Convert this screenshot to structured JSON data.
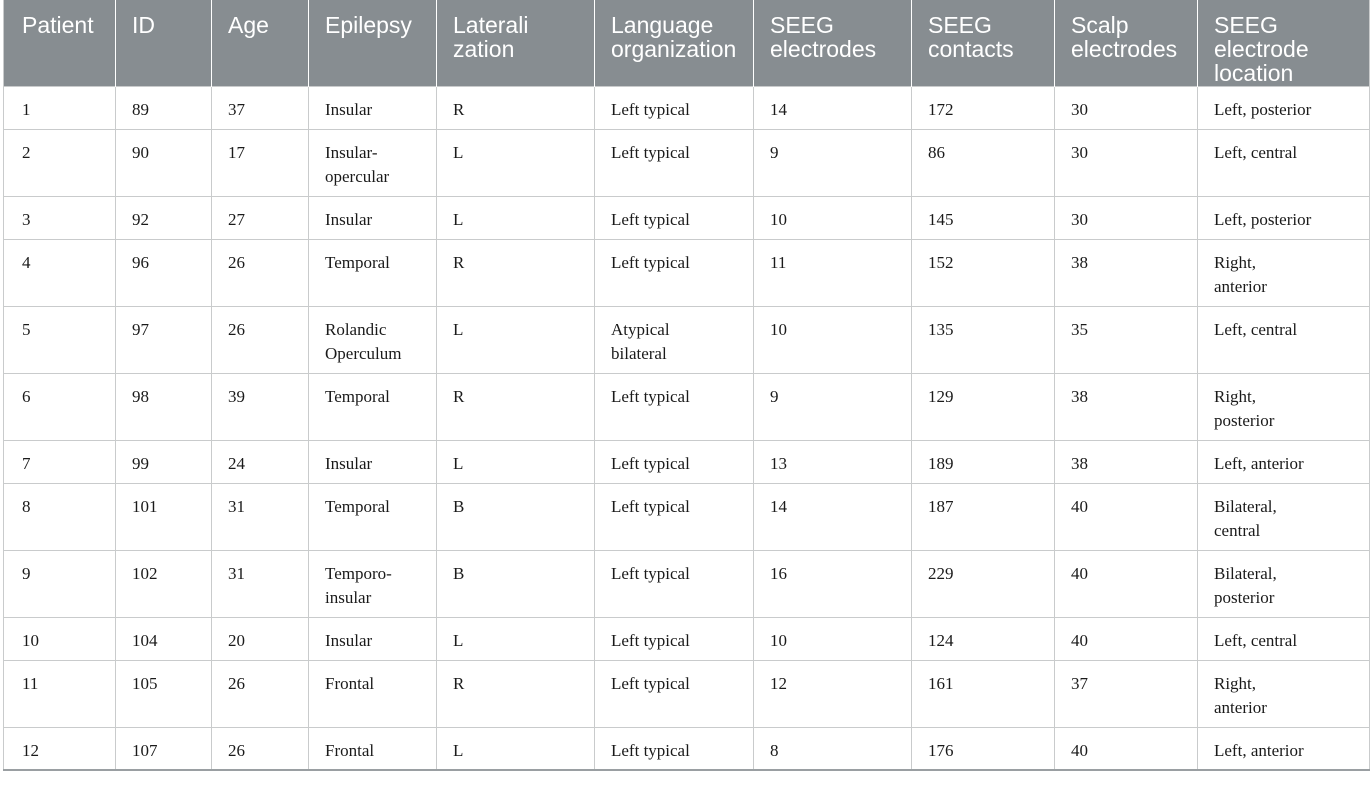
{
  "table": {
    "headers": [
      "Patient",
      "ID",
      "Age",
      "Epilepsy",
      "Laterali\nzation",
      "Language\norganization",
      "SEEG\nelectrodes",
      "SEEG\ncontacts",
      "Scalp\nelectrodes",
      "SEEG\nelectrode\nlocation"
    ],
    "rows": [
      [
        "1",
        "89",
        "37",
        "Insular",
        "R",
        "Left typical",
        "14",
        "172",
        "30",
        "Left, posterior"
      ],
      [
        "2",
        "90",
        "17",
        "Insular-\nopercular",
        "L",
        "Left typical",
        "9",
        "86",
        "30",
        "Left, central"
      ],
      [
        "3",
        "92",
        "27",
        "Insular",
        "L",
        "Left typical",
        "10",
        "145",
        "30",
        "Left, posterior"
      ],
      [
        "4",
        "96",
        "26",
        "Temporal",
        "R",
        "Left typical",
        "11",
        "152",
        "38",
        "Right,\nanterior"
      ],
      [
        "5",
        "97",
        "26",
        "Rolandic\nOperculum",
        "L",
        "Atypical\nbilateral",
        "10",
        "135",
        "35",
        "Left, central"
      ],
      [
        "6",
        "98",
        "39",
        "Temporal",
        "R",
        "Left typical",
        "9",
        "129",
        "38",
        "Right,\nposterior"
      ],
      [
        "7",
        "99",
        "24",
        "Insular",
        "L",
        "Left typical",
        "13",
        "189",
        "38",
        "Left, anterior"
      ],
      [
        "8",
        "101",
        "31",
        "Temporal",
        "B",
        "Left typical",
        "14",
        "187",
        "40",
        "Bilateral,\ncentral"
      ],
      [
        "9",
        "102",
        "31",
        "Temporo-\ninsular",
        "B",
        "Left typical",
        "16",
        "229",
        "40",
        "Bilateral,\nposterior"
      ],
      [
        "10",
        "104",
        "20",
        "Insular",
        "L",
        "Left typical",
        "10",
        "124",
        "40",
        "Left, central"
      ],
      [
        "11",
        "105",
        "26",
        "Frontal",
        "R",
        "Left typical",
        "12",
        "161",
        "37",
        "Right,\nanterior"
      ],
      [
        "12",
        "107",
        "26",
        "Frontal",
        "L",
        "Left typical",
        "8",
        "176",
        "40",
        "Left, anterior"
      ]
    ]
  },
  "colors": {
    "header_bg": "#878d91",
    "header_text": "#ffffff",
    "grid_line": "#c9cbcc"
  }
}
